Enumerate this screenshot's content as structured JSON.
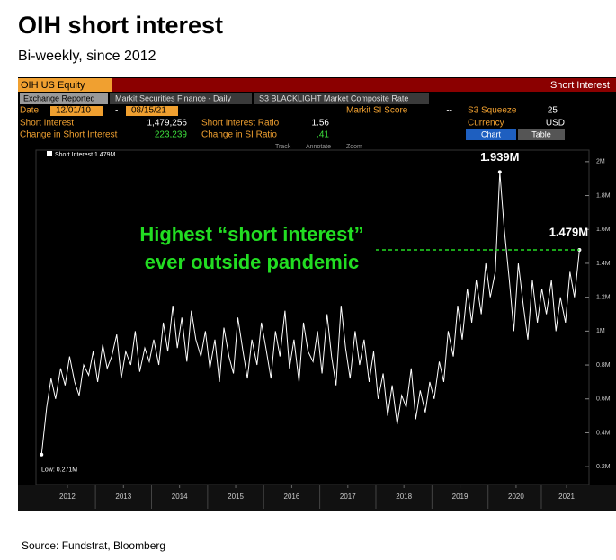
{
  "title": "OIH short interest",
  "subtitle": "Bi-weekly, since 2012",
  "source": "Source: Fundstrat, Bloomberg",
  "terminal": {
    "ticker": "OIH US Equity",
    "panel": "Short Interest",
    "tabs": [
      "Exchange Reported",
      "Markit Securities Finance - Daily",
      "S3 BLACKLIGHT Market Composite Rate"
    ],
    "date_label": "Date",
    "date_from": "12/01/10",
    "date_sep": "-",
    "date_to": "08/15/21",
    "fields": [
      [
        "Short Interest",
        "1,479,256"
      ],
      [
        "Change in Short Interest",
        "223,239"
      ],
      [
        "Short Interest Ratio",
        "1.56"
      ],
      [
        "Change in SI Ratio",
        ".41"
      ]
    ],
    "markit_label": "Markit SI Score",
    "markit_value": "--",
    "squeeze_label": "S3 Squeeze",
    "squeeze_value": "25",
    "currency_label": "Currency",
    "currency_value": "USD",
    "buttons": [
      "Chart",
      "Table"
    ],
    "tools": [
      "Track",
      "Annotate",
      "Zoom"
    ]
  },
  "chart_data": {
    "type": "line",
    "legend": "Short Interest 1.479M",
    "color": "#ffffff",
    "annotations": {
      "peak": "1.939M",
      "last": "1.479M",
      "low": "Low: 0.271M",
      "note": [
        "Highest “short interest”",
        "ever outside pandemic"
      ]
    },
    "x": [
      2012.04,
      2012.13,
      2012.21,
      2012.29,
      2012.38,
      2012.46,
      2012.54,
      2012.63,
      2012.71,
      2012.79,
      2012.88,
      2012.96,
      2013.04,
      2013.13,
      2013.21,
      2013.29,
      2013.38,
      2013.46,
      2013.54,
      2013.63,
      2013.71,
      2013.79,
      2013.88,
      2013.96,
      2014.04,
      2014.13,
      2014.21,
      2014.29,
      2014.38,
      2014.46,
      2014.54,
      2014.63,
      2014.71,
      2014.79,
      2014.88,
      2014.96,
      2015.04,
      2015.13,
      2015.21,
      2015.29,
      2015.38,
      2015.46,
      2015.54,
      2015.63,
      2015.71,
      2015.79,
      2015.88,
      2015.96,
      2016.04,
      2016.13,
      2016.21,
      2016.29,
      2016.38,
      2016.46,
      2016.54,
      2016.63,
      2016.71,
      2016.79,
      2016.88,
      2016.96,
      2017.04,
      2017.13,
      2017.21,
      2017.29,
      2017.38,
      2017.46,
      2017.54,
      2017.63,
      2017.71,
      2017.79,
      2017.88,
      2017.96,
      2018.04,
      2018.13,
      2018.21,
      2018.29,
      2018.38,
      2018.46,
      2018.54,
      2018.63,
      2018.71,
      2018.79,
      2018.88,
      2018.96,
      2019.04,
      2019.13,
      2019.21,
      2019.29,
      2019.38,
      2019.46,
      2019.54,
      2019.63,
      2019.71,
      2019.79,
      2019.88,
      2019.96,
      2020.04,
      2020.13,
      2020.21,
      2020.29,
      2020.38,
      2020.46,
      2020.54,
      2020.63,
      2020.71,
      2020.79,
      2020.88,
      2020.96,
      2021.04,
      2021.13,
      2021.21,
      2021.29,
      2021.38,
      2021.46,
      2021.54,
      2021.63
    ],
    "values": [
      0.271,
      0.55,
      0.72,
      0.6,
      0.78,
      0.68,
      0.85,
      0.7,
      0.62,
      0.8,
      0.74,
      0.88,
      0.7,
      0.92,
      0.78,
      0.85,
      0.98,
      0.72,
      0.88,
      0.8,
      1.0,
      0.76,
      0.9,
      0.82,
      0.95,
      0.8,
      1.05,
      0.88,
      1.15,
      0.9,
      1.08,
      0.82,
      1.12,
      0.95,
      0.85,
      1.0,
      0.78,
      0.95,
      0.7,
      1.02,
      0.85,
      0.75,
      1.08,
      0.88,
      0.72,
      0.95,
      0.8,
      1.05,
      0.9,
      0.72,
      1.0,
      0.85,
      1.12,
      0.78,
      0.95,
      0.7,
      1.05,
      0.88,
      0.82,
      1.0,
      0.75,
      1.1,
      0.85,
      0.68,
      1.15,
      0.9,
      0.72,
      1.0,
      0.8,
      0.95,
      0.7,
      0.88,
      0.6,
      0.75,
      0.5,
      0.68,
      0.45,
      0.62,
      0.55,
      0.78,
      0.48,
      0.65,
      0.52,
      0.7,
      0.6,
      0.82,
      0.7,
      1.0,
      0.85,
      1.15,
      0.95,
      1.25,
      1.05,
      1.3,
      1.1,
      1.4,
      1.2,
      1.35,
      1.939,
      1.6,
      1.3,
      1.0,
      1.4,
      1.15,
      0.95,
      1.3,
      1.05,
      1.25,
      1.1,
      1.3,
      1.0,
      1.2,
      1.05,
      1.35,
      1.2,
      1.479
    ],
    "xlim": [
      2011.94,
      2021.8
    ],
    "xticks": [
      {
        "value": 2012.5,
        "label": "2012"
      },
      {
        "value": 2013.5,
        "label": "2013"
      },
      {
        "value": 2014.5,
        "label": "2014"
      },
      {
        "value": 2015.5,
        "label": "2015"
      },
      {
        "value": 2016.5,
        "label": "2016"
      },
      {
        "value": 2017.5,
        "label": "2017"
      },
      {
        "value": 2018.5,
        "label": "2018"
      },
      {
        "value": 2019.5,
        "label": "2019"
      },
      {
        "value": 2020.5,
        "label": "2020"
      },
      {
        "value": 2021.4,
        "label": "2021"
      }
    ],
    "ylim": [
      0.1,
      2.1
    ],
    "yticks": [
      {
        "value": 0.2,
        "label": "0.2M"
      },
      {
        "value": 0.4,
        "label": "0.4M"
      },
      {
        "value": 0.6,
        "label": "0.6M"
      },
      {
        "value": 0.8,
        "label": "0.8M"
      },
      {
        "value": 1,
        "label": "1M"
      },
      {
        "value": 1.2,
        "label": "1.2M"
      },
      {
        "value": 1.4,
        "label": "1.4M"
      },
      {
        "value": 1.6,
        "label": "1.6M"
      },
      {
        "value": 1.8,
        "label": "1.8M"
      },
      {
        "value": 2,
        "label": "2M"
      }
    ],
    "highlight_color": "#22dd22"
  }
}
